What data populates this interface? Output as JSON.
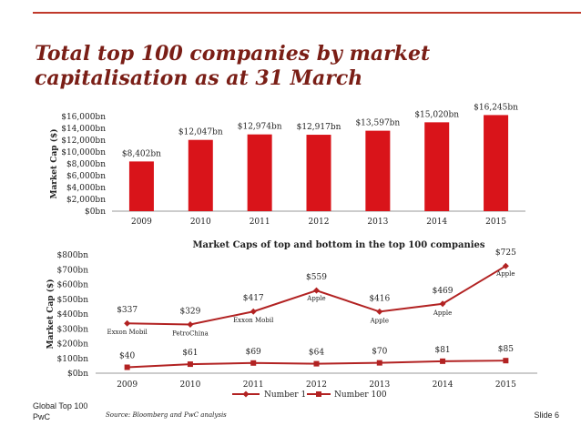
{
  "slide": {
    "title": "Total top 100 companies by market capitalisation as at 31 March",
    "footer_org": "Global Top 100",
    "footer_brand": "PwC",
    "source": "Source: Bloomberg and PwC analysis",
    "slide_number": "Slide 6"
  },
  "colors": {
    "accent": "#c0392b",
    "bar": "#d9141a",
    "line": "#b22222",
    "title": "#7a1e16"
  },
  "chart_data": [
    {
      "type": "bar",
      "title": "",
      "xlabel": "",
      "ylabel": "Market Cap ($)",
      "categories": [
        "2009",
        "2010",
        "2011",
        "2012",
        "2013",
        "2014",
        "2015"
      ],
      "values": [
        8402,
        12047,
        12974,
        12917,
        13597,
        15020,
        16245
      ],
      "data_labels": [
        "$8,402bn",
        "$12,047bn",
        "$12,974bn",
        "$12,917bn",
        "$13,597bn",
        "$15,020bn",
        "$16,245bn"
      ],
      "yticks": [
        0,
        2000,
        4000,
        6000,
        8000,
        10000,
        12000,
        14000,
        16000
      ],
      "ytick_labels": [
        "$0bn",
        "$2,000bn",
        "$4,000bn",
        "$6,000bn",
        "$8,000bn",
        "$10,000bn",
        "$12,000bn",
        "$14,000bn",
        "$16,000bn"
      ],
      "ylim": [
        0,
        16000
      ],
      "grid": false
    },
    {
      "type": "line",
      "title": "Market Caps of top and bottom in the top 100 companies",
      "xlabel": "",
      "ylabel": "Market Cap ($)",
      "categories": [
        "2009",
        "2010",
        "2011",
        "2012",
        "2013",
        "2014",
        "2015"
      ],
      "series": [
        {
          "name": "Number 1",
          "values": [
            337,
            329,
            417,
            559,
            416,
            469,
            725
          ],
          "data_labels": [
            "$337",
            "$329",
            "$417",
            "$559",
            "$416",
            "$469",
            "$725"
          ],
          "annotations": [
            "Exxon Mobil",
            "PetroChina",
            "Exxon Mobil",
            "Apple",
            "Apple",
            "Apple",
            "Apple"
          ]
        },
        {
          "name": "Number 100",
          "values": [
            40,
            61,
            69,
            64,
            70,
            81,
            85
          ],
          "data_labels": [
            "$40",
            "$61",
            "$69",
            "$64",
            "$70",
            "$81",
            "$85"
          ]
        }
      ],
      "yticks": [
        0,
        100,
        200,
        300,
        400,
        500,
        600,
        700,
        800
      ],
      "ytick_labels": [
        "$0bn",
        "$100bn",
        "$200bn",
        "$300bn",
        "$400bn",
        "$500bn",
        "$600bn",
        "$700bn",
        "$800bn"
      ],
      "ylim": [
        0,
        800
      ],
      "legend": "bottom",
      "grid": false
    }
  ]
}
